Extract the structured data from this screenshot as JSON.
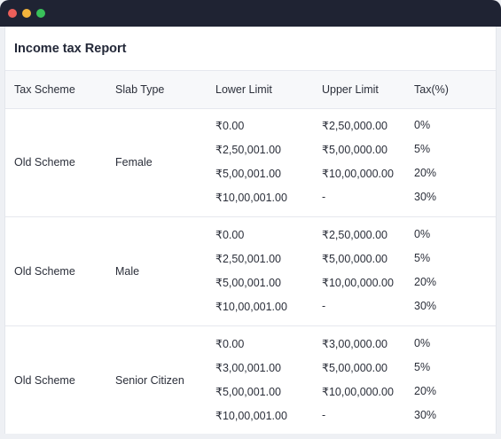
{
  "report": {
    "title": "Income tax Report"
  },
  "columns": [
    "Tax Scheme",
    "Slab Type",
    "Lower Limit",
    "Upper Limit",
    "Tax(%)"
  ],
  "groups": [
    {
      "scheme": "Old Scheme",
      "slab_type": "Female",
      "rows": [
        {
          "lower": "₹0.00",
          "upper": "₹2,50,000.00",
          "tax": "0%"
        },
        {
          "lower": "₹2,50,001.00",
          "upper": "₹5,00,000.00",
          "tax": "5%"
        },
        {
          "lower": "₹5,00,001.00",
          "upper": "₹10,00,000.00",
          "tax": "20%"
        },
        {
          "lower": "₹10,00,001.00",
          "upper": "-",
          "tax": "30%"
        }
      ]
    },
    {
      "scheme": "Old Scheme",
      "slab_type": "Male",
      "rows": [
        {
          "lower": "₹0.00",
          "upper": "₹2,50,000.00",
          "tax": "0%"
        },
        {
          "lower": "₹2,50,001.00",
          "upper": "₹5,00,000.00",
          "tax": "5%"
        },
        {
          "lower": "₹5,00,001.00",
          "upper": "₹10,00,000.00",
          "tax": "20%"
        },
        {
          "lower": "₹10,00,001.00",
          "upper": "-",
          "tax": "30%"
        }
      ]
    },
    {
      "scheme": "Old Scheme",
      "slab_type": "Senior Citizen",
      "rows": [
        {
          "lower": "₹0.00",
          "upper": "₹3,00,000.00",
          "tax": "0%"
        },
        {
          "lower": "₹3,00,001.00",
          "upper": "₹5,00,000.00",
          "tax": "5%"
        },
        {
          "lower": "₹5,00,001.00",
          "upper": "₹10,00,000.00",
          "tax": "20%"
        },
        {
          "lower": "₹10,00,001.00",
          "upper": "-",
          "tax": "30%"
        }
      ]
    }
  ]
}
